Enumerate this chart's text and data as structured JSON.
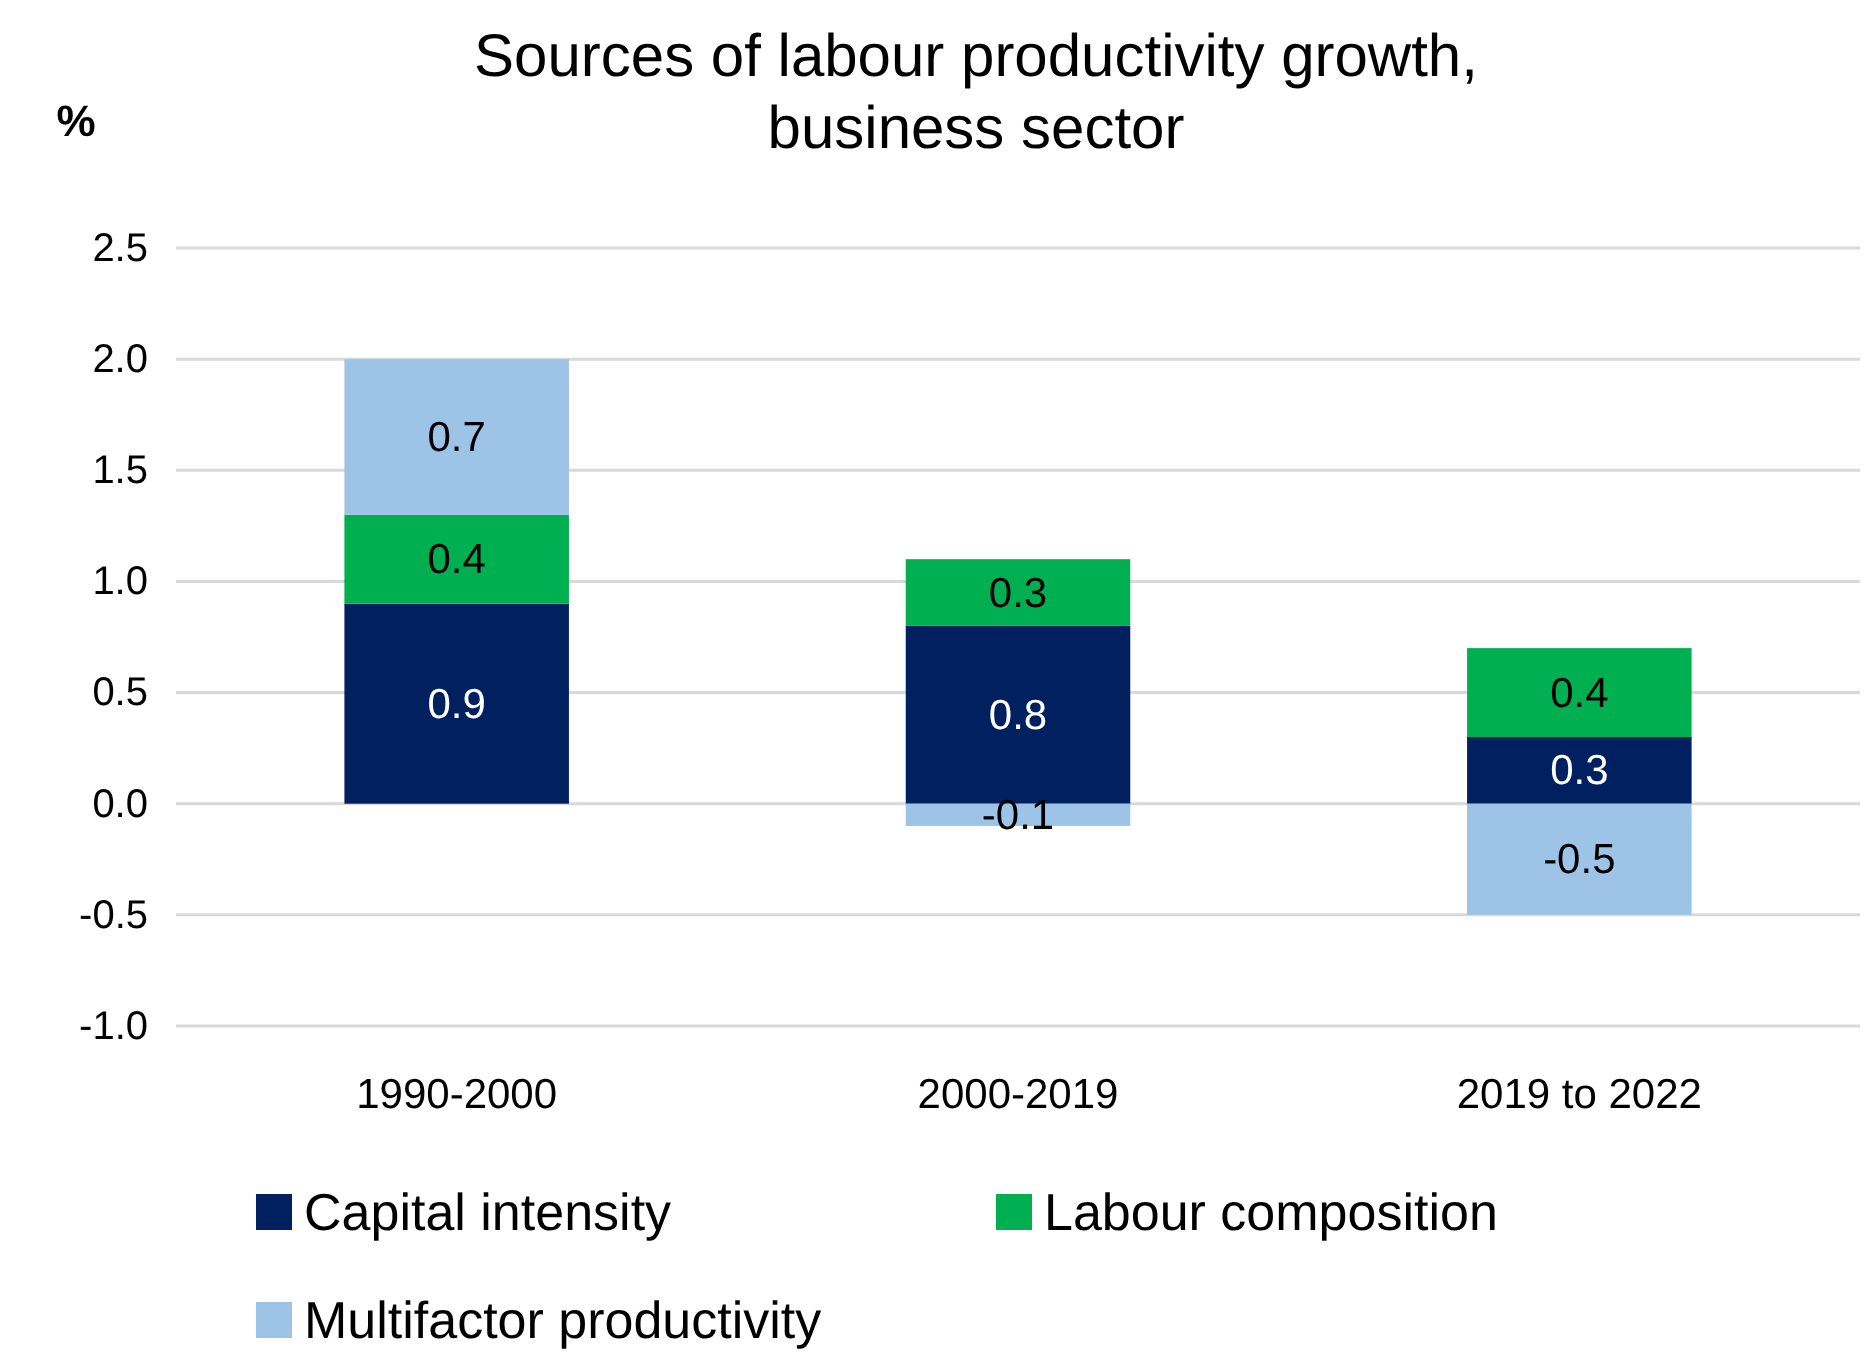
{
  "chart_data": {
    "type": "bar",
    "title": "Sources of labour productivity growth, business sector",
    "ylabel": "%",
    "categories": [
      "1990-2000",
      "2000-2019",
      "2019 to 2022"
    ],
    "series": [
      {
        "name": "Capital intensity",
        "color": "#002060",
        "values": [
          0.9,
          0.8,
          0.3
        ]
      },
      {
        "name": "Labour composition",
        "color": "#00b050",
        "values": [
          0.4,
          0.3,
          0.4
        ]
      },
      {
        "name": "Multifactor productivity",
        "color": "#9dc3e6",
        "values": [
          0.7,
          -0.1,
          -0.5
        ]
      }
    ],
    "stacked": true,
    "data_labels": true,
    "grid": "y",
    "legend": "bottom",
    "ylim": [
      -1.0,
      2.5
    ],
    "yticks": [
      {
        "value": -1.0,
        "label": "-1.0"
      },
      {
        "value": -0.5,
        "label": "-0.5"
      },
      {
        "value": 0,
        "label": "0.0"
      },
      {
        "value": 0.5,
        "label": "0.5"
      },
      {
        "value": 1.0,
        "label": "1.0"
      },
      {
        "value": 1.5,
        "label": "1.5"
      },
      {
        "value": 2.0,
        "label": "2.0"
      },
      {
        "value": 2.5,
        "label": "2.5"
      }
    ]
  }
}
